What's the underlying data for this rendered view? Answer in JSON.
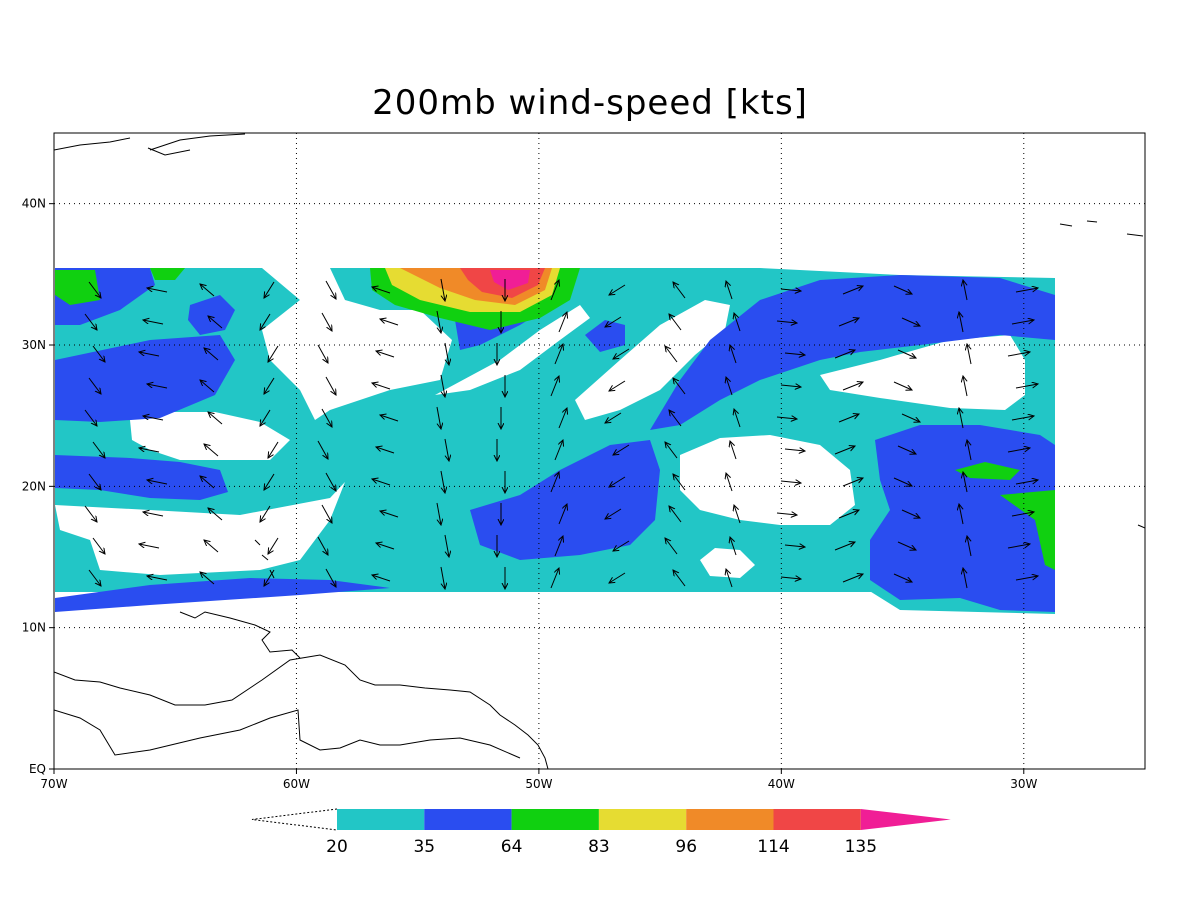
{
  "title": "200mb wind-speed [kts]",
  "map": {
    "projection": "lat-lon",
    "lon_range": [
      -70,
      -25
    ],
    "lat_range": [
      0,
      45
    ],
    "lon_ticks": [
      "70W",
      "60W",
      "50W",
      "40W",
      "30W"
    ],
    "lat_ticks": [
      "EQ",
      "10N",
      "20N",
      "30N",
      "40N"
    ],
    "gridlines": "dotted",
    "data_domain": {
      "lon": [
        -70,
        -29
      ],
      "lat": [
        12.5,
        35.5
      ]
    }
  },
  "colorbar": {
    "levels": [
      "20",
      "35",
      "64",
      "83",
      "96",
      "114",
      "135"
    ],
    "colors": [
      "#22c6c6",
      "#2a4df0",
      "#10d010",
      "#e6dc32",
      "#f08a28",
      "#f04646",
      "#f01e96"
    ],
    "extend": "both"
  },
  "colors": {
    "ws_20_35": "#22c6c6",
    "ws_35_64": "#2a4df0",
    "ws_64_83": "#10d010",
    "ws_83_96": "#e6dc32",
    "ws_96_114": "#f08a28",
    "ws_114_135": "#f04646",
    "ws_135_plus": "#f01e96"
  }
}
